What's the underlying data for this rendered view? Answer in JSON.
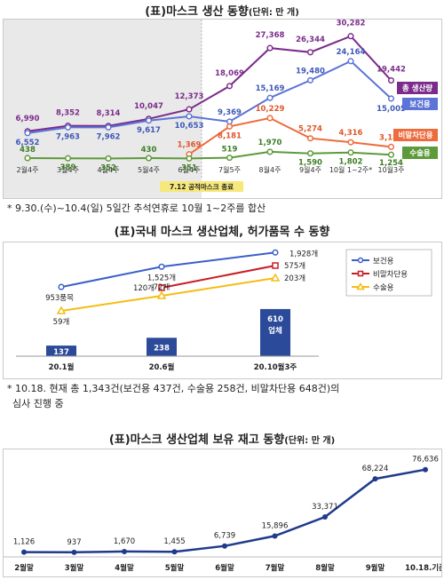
{
  "chart1": {
    "title": "(표)마스크 생산 동향",
    "unit": "(단위: 만 개)",
    "note": "* 9.30.(수)~10.4(일) 5일간 추석연휴로 10월 1~2주를 합산",
    "annotation": "7.12 공적마스크 종료",
    "chart_data": {
      "type": "line",
      "categories": [
        "2월4주",
        "3월4주",
        "4월4주",
        "5월4주",
        "6월4주",
        "7월5주",
        "8월4주",
        "9월4주",
        "10월 1~2주*",
        "10월3주"
      ],
      "series": [
        {
          "name": "총 생산량",
          "color": "#7b2c8b",
          "values": [
            6990,
            8352,
            8314,
            10047,
            12373,
            18069,
            27368,
            26344,
            30282,
            19442
          ],
          "labels": [
            "6,990",
            "8,352",
            "8,314",
            "10,047",
            "12,373",
            "18,069",
            "27,368",
            "26,344",
            "30,282",
            "19,442"
          ]
        },
        {
          "name": "보건용",
          "color": "#5b74d6",
          "values": [
            6552,
            7963,
            7962,
            9617,
            10653,
            9369,
            15169,
            19480,
            24164,
            15005
          ],
          "labels": [
            "6,552",
            "7,963",
            "7,962",
            "9,617",
            "10,653",
            "9,369",
            "15,169",
            "19,480",
            "24,164",
            "15,005"
          ]
        },
        {
          "name": "비말차단용",
          "color": "#ee6b3b",
          "values": [
            null,
            null,
            null,
            null,
            1369,
            8181,
            10229,
            5274,
            4316,
            3183
          ],
          "labels": [
            "",
            "",
            "",
            "",
            "1,369",
            "8,181",
            "10,229",
            "5,274",
            "4,316",
            "3,183"
          ]
        },
        {
          "name": "수술용",
          "color": "#5c9a3a",
          "values": [
            438,
            389,
            352,
            430,
            351,
            519,
            1970,
            1590,
            1802,
            1254
          ],
          "labels": [
            "438",
            "389",
            "352",
            "430",
            "351",
            "519",
            "1,970",
            "1,590",
            "1,802",
            "1,254"
          ]
        }
      ]
    }
  },
  "chart2": {
    "title": "(표)국내 마스크 생산업체, 허가품목 수 동향",
    "note_line1": "* 10.18. 현재 총 1,343건(보건용 437건, 수술용 258건, 비말차단용 648건)의",
    "note_line2": "심사 진행 중",
    "chart_data": {
      "type": "bar+line",
      "categories": [
        "20.1월",
        "20.6월",
        "20.10월3주"
      ],
      "bars": {
        "name": "업체",
        "color": "#2c4a9a",
        "values": [
          137,
          238,
          610
        ],
        "labels": [
          "137",
          "238",
          "610"
        ],
        "label_suffix": "업체"
      },
      "series": [
        {
          "name": "보건용",
          "color": "#3b5fc9",
          "values": [
            953,
            1525,
            1928
          ],
          "labels": [
            "953품목",
            "1,525개",
            "1,928개"
          ]
        },
        {
          "name": "비말차단용",
          "color": "#c91d24",
          "values": [
            null,
            120,
            575
          ],
          "labels": [
            "",
            "120개",
            "575개"
          ]
        },
        {
          "name": "수술용",
          "color": "#f4bd12",
          "values": [
            59,
            72,
            203
          ],
          "labels": [
            "59개",
            "72개",
            "203개"
          ]
        }
      ],
      "legend": "right"
    }
  },
  "chart3": {
    "title": "(표)마스크 생산업체 보유 재고 동향",
    "unit": "(단위: 만 개)",
    "chart_data": {
      "type": "line",
      "categories": [
        "2월말",
        "3월말",
        "4월말",
        "5월말",
        "6월말",
        "7월말",
        "8월말",
        "9월말",
        "10.18.기준"
      ],
      "series": [
        {
          "name": "",
          "color": "#1f3b8c",
          "values": [
            1126,
            937,
            1670,
            1455,
            6739,
            15896,
            33371,
            68224,
            76636
          ],
          "labels": [
            "1,126",
            "937",
            "1,670",
            "1,455",
            "6,739",
            "15,896",
            "33,371",
            "68,224",
            "76,636"
          ]
        }
      ]
    }
  }
}
